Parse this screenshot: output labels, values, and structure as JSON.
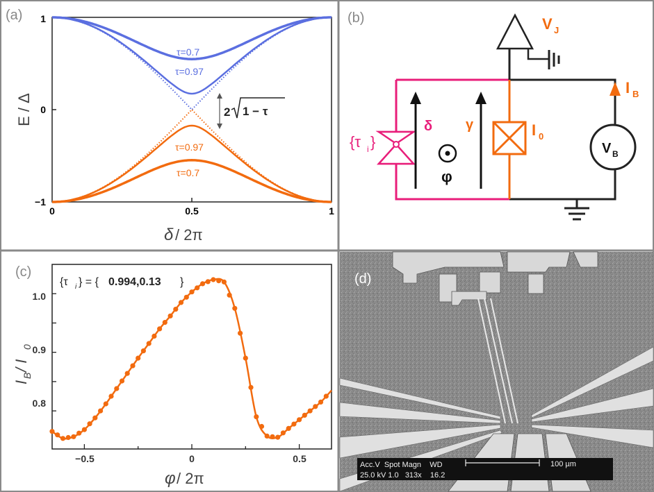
{
  "colors": {
    "blue": "#5b6fe0",
    "orange": "#f26b0f",
    "pink": "#e81e7a",
    "frame": "#8a8a8a",
    "sem_bg": "#8c8c8c"
  },
  "panel_a": {
    "label": "(a)",
    "ylabel": "E / Δ",
    "xlabel_main": "δ",
    "xlabel_rest": " / 2π",
    "gap_label": "2√(1 − τ)",
    "gap_prefix": "2",
    "gap_radicand": "1 − τ",
    "curve_labels": [
      "τ=0.7",
      "τ=0.97",
      "τ=0.97",
      "τ=0.7"
    ],
    "chart_data": {
      "type": "line",
      "xlabel": "δ / 2π",
      "ylabel": "E / Δ",
      "xlim": [
        0,
        1
      ],
      "ylim": [
        -1,
        1
      ],
      "xticks": [
        "0",
        "0.5",
        "1"
      ],
      "yticks": [
        "1",
        "0",
        "−1"
      ],
      "series": [
        {
          "name": "τ=0.7",
          "color": "blue",
          "style": "solid",
          "values_at": "E=+sqrt(1-τ sin²(πδ))",
          "tau": 0.7
        },
        {
          "name": "τ=0.97",
          "color": "blue",
          "style": "solid",
          "tau": 0.97
        },
        {
          "name": "τ=1",
          "color": "blue",
          "style": "dotted",
          "tau": 1
        },
        {
          "name": "τ=0.97",
          "color": "orange",
          "style": "solid",
          "tau": 0.97
        },
        {
          "name": "τ=0.7",
          "color": "orange",
          "style": "solid",
          "tau": 0.7
        },
        {
          "name": "τ=1",
          "color": "orange",
          "style": "dotted",
          "tau": 1
        }
      ]
    }
  },
  "panel_b": {
    "label": "(b)",
    "vj": "V",
    "vj_sub": "J",
    "ib": "I",
    "ib_sub": "B",
    "i0": "I",
    "i0_sub": "0",
    "vb": "V",
    "vb_sub": "B",
    "tau_open": "{τ",
    "tau_sub": "i",
    "tau_close": "}",
    "delta": "δ",
    "gamma": "γ",
    "phi": "φ"
  },
  "panel_c": {
    "label": "(c)",
    "annotation_prefix": "{τ",
    "annotation_sub": "i",
    "annotation_mid": "} = {",
    "annotation_values": "0.994,0.13",
    "annotation_end": "}",
    "ylabel_main": "I",
    "ylabel_sub_b": "B",
    "ylabel_mid": " / I",
    "ylabel_sub_0": "0",
    "xlabel_main": "φ",
    "xlabel_rest": " / 2π",
    "chart_data": {
      "type": "line",
      "xlabel": "φ / 2π",
      "ylabel": "I_B / I_0",
      "xlim": [
        -0.65,
        0.65
      ],
      "ylim": [
        0.735,
        1.05
      ],
      "xticks": [
        "−0.5",
        "0",
        "0.5"
      ],
      "yticks": [
        "1.0",
        "0.9",
        "0.8"
      ],
      "series": [
        {
          "name": "",
          "x": [
            -0.65,
            -0.6,
            -0.55,
            -0.5,
            -0.45,
            -0.4,
            -0.35,
            -0.3,
            -0.25,
            -0.2,
            -0.15,
            -0.1,
            -0.05,
            0,
            0.05,
            0.1,
            0.15,
            0.2,
            0.25,
            0.3,
            0.35,
            0.4,
            0.45,
            0.5,
            0.55,
            0.6,
            0.65
          ],
          "y": [
            0.765,
            0.753,
            0.756,
            0.768,
            0.788,
            0.812,
            0.838,
            0.864,
            0.89,
            0.915,
            0.94,
            0.962,
            0.985,
            1.003,
            1.017,
            1.024,
            1.02,
            0.975,
            0.89,
            0.79,
            0.757,
            0.755,
            0.77,
            0.785,
            0.8,
            0.815,
            0.835
          ]
        }
      ]
    }
  },
  "panel_d": {
    "label": "(d)",
    "scalebar_label": "100 µm",
    "info_row1": "Acc.V  Spot Magn    WD",
    "info_row2": "25.0 kV 1.0   313x    16.2"
  }
}
